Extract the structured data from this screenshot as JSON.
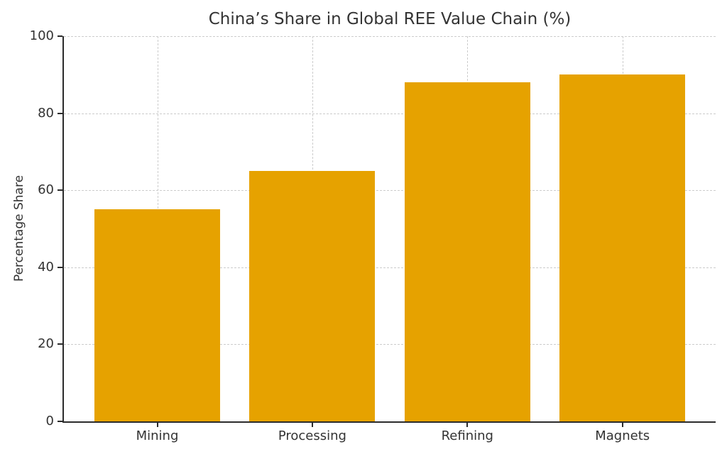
{
  "chart_data": {
    "type": "bar",
    "title": "China’s Share in Global REE Value Chain (%)",
    "categories": [
      "Mining",
      "Processing",
      "Refining",
      "Magnets"
    ],
    "values": [
      55,
      65,
      88,
      90
    ],
    "xlabel": "",
    "ylabel": "Percentage Share",
    "ylim": [
      0,
      100
    ],
    "yticks": [
      0,
      20,
      40,
      60,
      80,
      100
    ],
    "bar_color": "#E6A200",
    "grid": "dashed, horizontal at yticks and vertical at bar centers",
    "grid_color": "#cccccc",
    "spine_color": "#2b2b2b",
    "text_color": "#333333",
    "background_color": "#ffffff",
    "legend": "none"
  }
}
